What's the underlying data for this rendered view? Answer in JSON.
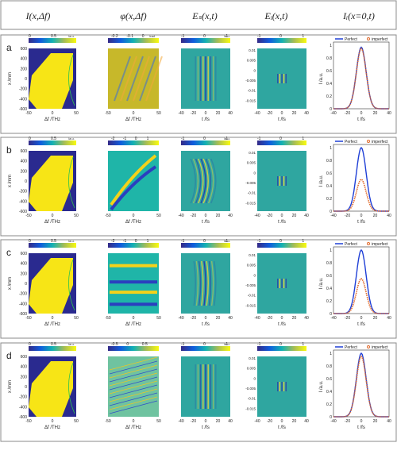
{
  "headers": [
    "I(x,Δf)",
    "φ(x,Δf)",
    "Eₛ(x,t)",
    "Eᵢ(x,t)",
    "Iᵢ(x=0,t)"
  ],
  "rows": [
    {
      "label": "a",
      "phase_cb_ticks": [
        "-0.2",
        "-0.1",
        "0"
      ],
      "phase_cb_unit": "/rad",
      "peak": 0.97,
      "imperfect_peak": 0.95,
      "phase_style": "smooth"
    },
    {
      "label": "b",
      "phase_cb_ticks": [
        "-2",
        "-1",
        "0",
        "1"
      ],
      "phase_cb_unit": "",
      "peak": 1.0,
      "imperfect_peak": 0.5,
      "phase_style": "bands"
    },
    {
      "label": "c",
      "phase_cb_ticks": [
        "-2",
        "-1",
        "0",
        "1"
      ],
      "phase_cb_unit": "",
      "peak": 1.0,
      "imperfect_peak": 0.55,
      "phase_style": "steps"
    },
    {
      "label": "d",
      "phase_cb_ticks": [
        "-0.5",
        "0",
        "0.5"
      ],
      "phase_cb_unit": "",
      "peak": 1.0,
      "imperfect_peak": 0.95,
      "phase_style": "lines"
    }
  ],
  "intensity_cb_ticks": [
    "0",
    "0.5"
  ],
  "intensity_cb_unit": "/a.u.",
  "field_cb_ticks": [
    "-1",
    "0",
    "1"
  ],
  "field_cb_unit": "/a.u.",
  "x_axis_label": "x /mm",
  "x_ticks": [
    "600",
    "400",
    "200",
    "0",
    "-200",
    "-400",
    "-600"
  ],
  "freq_axis_label": "Δf /THz",
  "freq_ticks": [
    "-50",
    "0",
    "50"
  ],
  "time_axis_label": "t /fs",
  "time_ticks": [
    "-40",
    "-20",
    "0",
    "20",
    "40"
  ],
  "ei_ticks": [
    "0.01",
    "0.005",
    "0",
    "-0.005",
    "-0.01",
    "-0.015"
  ],
  "profile_y_label": "I /a.u.",
  "profile_y_ticks": [
    "1",
    "0.8",
    "0.6",
    "0.4",
    "0.2",
    "0"
  ],
  "legend_perfect": "Perfect",
  "legend_imperfect": "imperfect",
  "colors": {
    "perfect": "#1f3fd6",
    "imperfect": "#e06a2c",
    "high": "#f7e516",
    "low": "#2a2a8f",
    "mid": "#1fb5a8"
  }
}
